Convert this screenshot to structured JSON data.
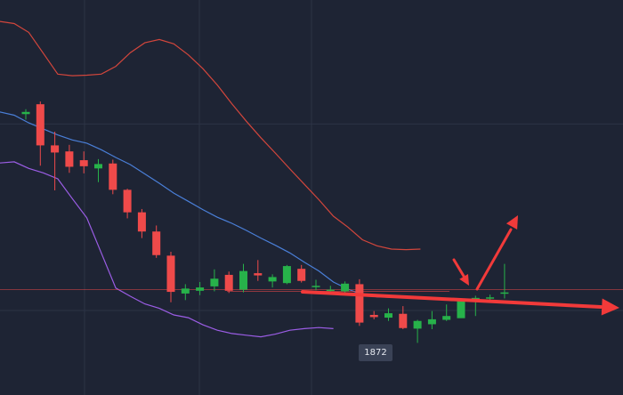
{
  "colors": {
    "background": "#1e2434",
    "grid": "#2c3345",
    "bullish": "#27b24a",
    "bearish": "#ef4a4a",
    "upper_band": "#d2463c",
    "middle_band": "#4a7fd8",
    "lower_band": "#9b5de5",
    "annotation": "#f23a3a",
    "label_bg": "#3a4256",
    "label_text": "#e6e9f0"
  },
  "price_label": "1872",
  "chart_data": {
    "type": "candlestick",
    "title": "",
    "xlabel": "",
    "ylabel": "",
    "grid": true,
    "ylim": [
      1862,
      1934
    ],
    "candles": [
      {
        "o": 1913.2,
        "h": 1914.1,
        "l": 1912.2,
        "c": 1913.6
      },
      {
        "o": 1915.0,
        "h": 1915.5,
        "l": 1903.8,
        "c": 1907.5
      },
      {
        "o": 1907.5,
        "h": 1910.0,
        "l": 1899.3,
        "c": 1906.2
      },
      {
        "o": 1906.4,
        "h": 1907.6,
        "l": 1902.5,
        "c": 1903.6
      },
      {
        "o": 1904.8,
        "h": 1906.4,
        "l": 1902.4,
        "c": 1903.7
      },
      {
        "o": 1903.3,
        "h": 1905.0,
        "l": 1900.8,
        "c": 1904.1
      },
      {
        "o": 1904.2,
        "h": 1904.9,
        "l": 1898.6,
        "c": 1899.4
      },
      {
        "o": 1899.4,
        "h": 1899.6,
        "l": 1894.2,
        "c": 1895.3
      },
      {
        "o": 1895.3,
        "h": 1895.9,
        "l": 1890.6,
        "c": 1891.8
      },
      {
        "o": 1891.8,
        "h": 1892.9,
        "l": 1887.0,
        "c": 1887.5
      },
      {
        "o": 1887.4,
        "h": 1888.1,
        "l": 1878.9,
        "c": 1880.8
      },
      {
        "o": 1880.5,
        "h": 1882.2,
        "l": 1879.3,
        "c": 1881.4
      },
      {
        "o": 1881.0,
        "h": 1882.6,
        "l": 1880.2,
        "c": 1881.6
      },
      {
        "o": 1881.8,
        "h": 1884.9,
        "l": 1880.9,
        "c": 1883.2
      },
      {
        "o": 1883.9,
        "h": 1884.5,
        "l": 1880.6,
        "c": 1881.0
      },
      {
        "o": 1881.2,
        "h": 1885.9,
        "l": 1880.7,
        "c": 1884.6
      },
      {
        "o": 1884.2,
        "h": 1886.6,
        "l": 1882.8,
        "c": 1883.8
      },
      {
        "o": 1882.7,
        "h": 1884.0,
        "l": 1881.6,
        "c": 1883.5
      },
      {
        "o": 1882.4,
        "h": 1885.7,
        "l": 1882.2,
        "c": 1885.5
      },
      {
        "o": 1885.0,
        "h": 1885.7,
        "l": 1882.5,
        "c": 1882.8
      },
      {
        "o": 1881.8,
        "h": 1883.0,
        "l": 1881.1,
        "c": 1881.9
      },
      {
        "o": 1881.2,
        "h": 1881.9,
        "l": 1880.8,
        "c": 1881.2
      },
      {
        "o": 1880.9,
        "h": 1882.7,
        "l": 1880.2,
        "c": 1882.3
      },
      {
        "o": 1882.2,
        "h": 1883.1,
        "l": 1874.6,
        "c": 1875.2
      },
      {
        "o": 1876.6,
        "h": 1877.3,
        "l": 1875.8,
        "c": 1876.2
      },
      {
        "o": 1876.1,
        "h": 1877.8,
        "l": 1875.5,
        "c": 1876.9
      },
      {
        "o": 1876.8,
        "h": 1878.2,
        "l": 1874.0,
        "c": 1874.2
      },
      {
        "o": 1874.1,
        "h": 1875.7,
        "l": 1871.5,
        "c": 1875.5
      },
      {
        "o": 1874.9,
        "h": 1877.3,
        "l": 1874.0,
        "c": 1875.8
      },
      {
        "o": 1875.7,
        "h": 1878.5,
        "l": 1875.5,
        "c": 1876.4
      },
      {
        "o": 1876.0,
        "h": 1879.1,
        "l": 1876.2,
        "c": 1879.1
      },
      {
        "o": 1879.1,
        "h": 1880.1,
        "l": 1876.4,
        "c": 1879.7
      },
      {
        "o": 1879.6,
        "h": 1880.3,
        "l": 1879.3,
        "c": 1879.8
      },
      {
        "o": 1880.6,
        "h": 1885.9,
        "l": 1879.6,
        "c": 1880.7
      }
    ],
    "series": [
      {
        "values": [
          1930.1,
          1929.7,
          1928.1,
          1924.3,
          1920.5,
          1920.2,
          1920.3,
          1920.5,
          1921.9,
          1924.4,
          1926.2,
          1926.8,
          1926.0,
          1924.0,
          1921.5,
          1918.5,
          1915.1,
          1911.9,
          1908.9,
          1906.1,
          1903.2,
          1900.4,
          1897.6,
          1894.6,
          1892.6,
          1890.3,
          1889.2,
          1888.6,
          1888.5,
          1888.6
        ]
      },
      {
        "values": [
          1913.6,
          1913.0,
          1911.6,
          1910.5,
          1909.4,
          1908.5,
          1907.9,
          1906.7,
          1905.3,
          1904.0,
          1902.3,
          1900.6,
          1898.8,
          1897.3,
          1895.8,
          1894.4,
          1893.3,
          1892.0,
          1890.6,
          1889.3,
          1887.9,
          1886.2,
          1884.6,
          1882.6,
          1881.3,
          1880.3,
          1879.9,
          1879.8
        ]
      },
      {
        "values": [
          1904.3,
          1904.5,
          1903.3,
          1902.5,
          1901.4,
          1897.8,
          1894.3,
          1887.9,
          1881.5,
          1880.0,
          1878.6,
          1877.8,
          1876.6,
          1876.1,
          1874.8,
          1873.8,
          1873.2,
          1872.9,
          1872.6,
          1873.1,
          1873.8,
          1874.1,
          1874.3,
          1874.1
        ]
      }
    ],
    "reference_lines": [
      {
        "y": 1881.2
      },
      {
        "y": 1880.9
      }
    ]
  }
}
